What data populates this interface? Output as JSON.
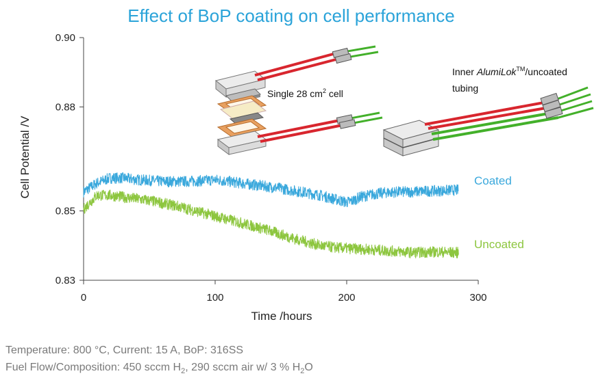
{
  "chart_data": {
    "type": "line",
    "title": "Effect of BoP coating on cell performance",
    "xlabel": "Time /hours",
    "ylabel": "Cell Potential /V",
    "xlim": [
      0,
      300
    ],
    "ylim": [
      0.83,
      0.9
    ],
    "xticks": [
      "0",
      "100",
      "200",
      "300"
    ],
    "yticks": [
      "0.83",
      "0.85",
      "0.88",
      "0.90"
    ],
    "grid": false,
    "series": [
      {
        "name": "Coated",
        "color": "#3aa8dc",
        "x": [
          0,
          10,
          20,
          30,
          40,
          50,
          60,
          70,
          80,
          90,
          100,
          110,
          120,
          130,
          140,
          150,
          160,
          170,
          180,
          190,
          195,
          200,
          205,
          210,
          220,
          230,
          240,
          250,
          260,
          270,
          280,
          285
        ],
        "y": [
          0.8555,
          0.858,
          0.8595,
          0.8595,
          0.859,
          0.8588,
          0.8585,
          0.8585,
          0.8585,
          0.8587,
          0.859,
          0.8585,
          0.858,
          0.8575,
          0.857,
          0.8565,
          0.8558,
          0.8552,
          0.8545,
          0.8535,
          0.853,
          0.8525,
          0.853,
          0.854,
          0.8548,
          0.8553,
          0.8555,
          0.8555,
          0.8557,
          0.8558,
          0.856,
          0.856
        ]
      },
      {
        "name": "Uncoated",
        "color": "#8dc63f",
        "x": [
          0,
          5,
          10,
          20,
          30,
          40,
          50,
          60,
          70,
          80,
          90,
          100,
          110,
          120,
          130,
          140,
          150,
          160,
          170,
          180,
          190,
          200,
          210,
          220,
          230,
          240,
          250,
          260,
          270,
          280,
          285
        ],
        "y": [
          0.8505,
          0.8525,
          0.8545,
          0.8545,
          0.854,
          0.8535,
          0.853,
          0.8522,
          0.8515,
          0.8505,
          0.8495,
          0.8485,
          0.8475,
          0.8465,
          0.8455,
          0.8445,
          0.8432,
          0.842,
          0.841,
          0.84,
          0.8395,
          0.8392,
          0.839,
          0.8388,
          0.8385,
          0.8383,
          0.838,
          0.8381,
          0.8382,
          0.838,
          0.838
        ]
      }
    ],
    "annotations": {
      "single_cell": "Single 28 cm",
      "single_cell_sup": "2",
      "single_cell_tail": " cell",
      "tubing_line1_pre": "Inner ",
      "tubing_line1_italic": "AlumiLok",
      "tubing_line1_sup": "TM",
      "tubing_line1_post": "/uncoated",
      "tubing_line2": "tubing"
    }
  },
  "footnote": {
    "line1": "Temperature: 800 °C, Current: 15 A, BoP: 316SS",
    "line2_a": "Fuel Flow/Composition: 450 sccm H",
    "line2_sub1": "2",
    "line2_b": ", 290 sccm air w/ 3 % H",
    "line2_sub2": "2",
    "line2_c": "O"
  },
  "colors": {
    "title": "#2aa3d9",
    "coated": "#3aa8dc",
    "uncoated": "#8dc63f",
    "tube_red": "#d8262e",
    "tube_green": "#43b02a"
  }
}
